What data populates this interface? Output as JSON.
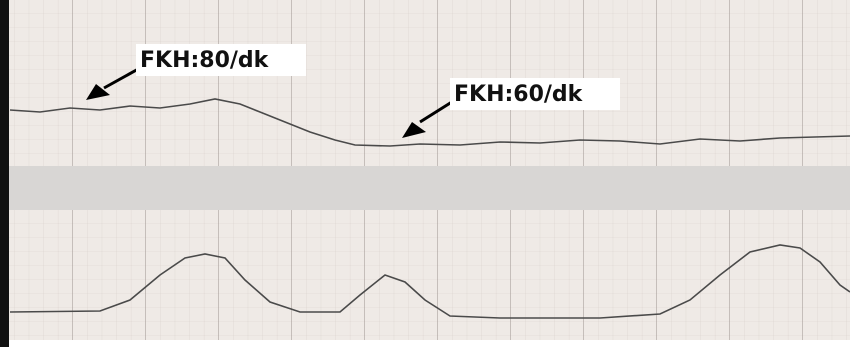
{
  "annotations": [
    {
      "label": "FKH:80/dk"
    },
    {
      "label": "FKH:60/dk"
    }
  ]
}
